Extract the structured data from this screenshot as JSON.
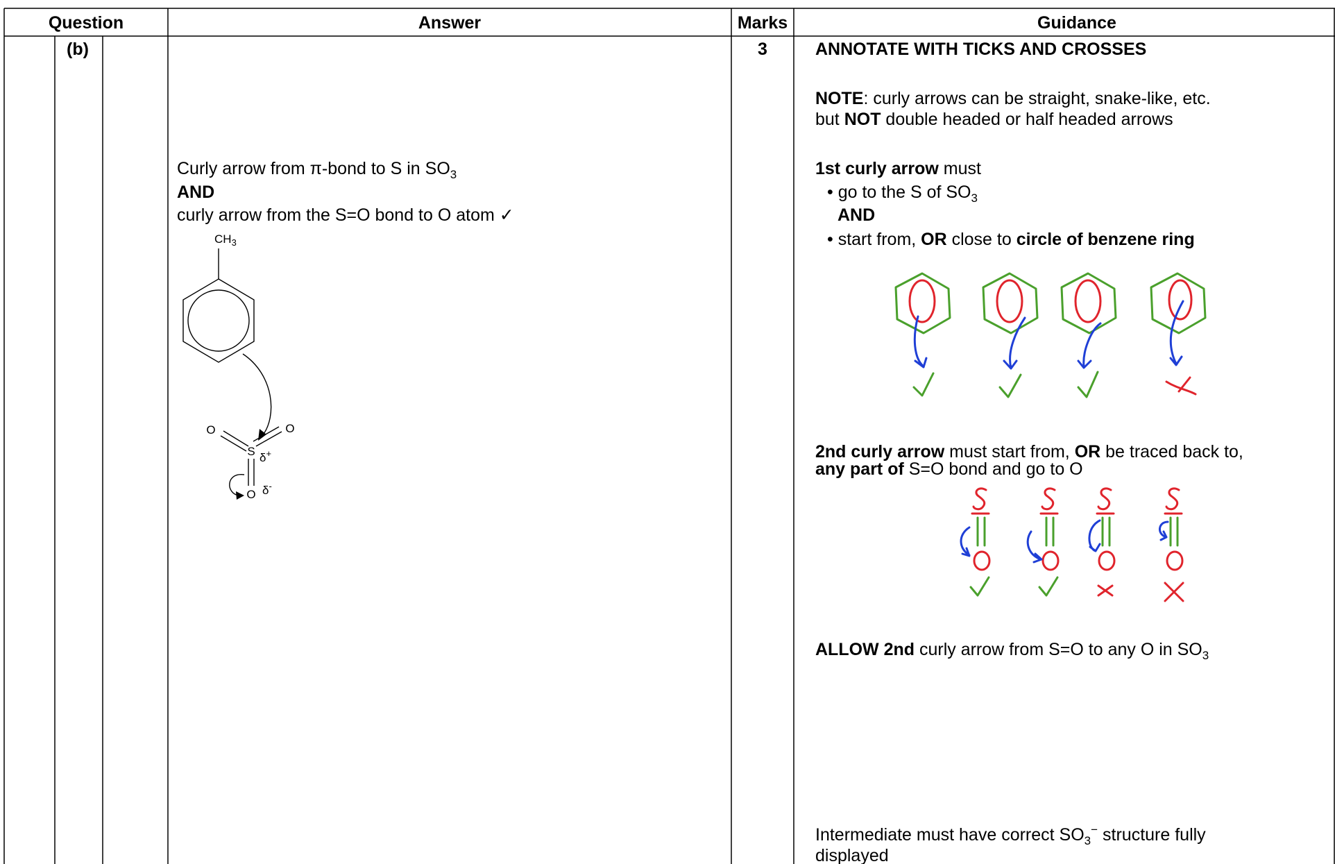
{
  "header": {
    "question": "Question",
    "answer": "Answer",
    "marks": "Marks",
    "guidance": "Guidance"
  },
  "row": {
    "question": "(b)",
    "marks": "3",
    "answer": {
      "line1": [
        "Curly arrow from π-bond to S in SO",
        "3"
      ],
      "line2": "AND",
      "line3": "curly arrow from the S=O bond to O atom ✓"
    },
    "structure": {
      "methyl": [
        "CH",
        "3"
      ],
      "oxygen_left": "O",
      "oxygen_right": "O",
      "sulfur": "S",
      "delta_plus": [
        "δ",
        "+"
      ],
      "oxygen_bottom": "O",
      "delta_minus": [
        "δ",
        "-"
      ]
    },
    "guidance": {
      "title": "ANNOTATE WITH TICKS AND CROSSES",
      "note1": [
        "NOTE",
        ": curly arrows can be straight, snake-like, etc."
      ],
      "note2": [
        "but ",
        "NOT",
        " double headed or half headed arrows"
      ],
      "first1": [
        "1st curly arrow",
        " must"
      ],
      "first2": [
        "• go to the S of SO",
        "3"
      ],
      "first3": "AND",
      "first4": [
        "• start from, ",
        "OR",
        " close to ",
        "circle of benzene ring"
      ],
      "second1": [
        "2nd curly arrow",
        " must start from, ",
        "OR",
        " be traced back to,"
      ],
      "second2": [
        "any part of",
        " S=O bond and go to O"
      ],
      "allow": [
        "ALLOW 2nd",
        " curly arrow from S=O to any O in SO",
        "3"
      ],
      "inter1": [
        "Intermediate must have correct SO",
        "3",
        "−",
        " structure fully"
      ],
      "inter2": "displayed"
    }
  }
}
